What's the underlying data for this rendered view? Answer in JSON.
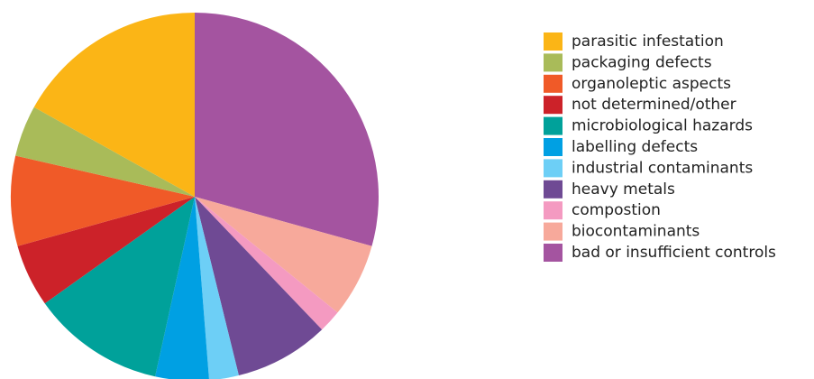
{
  "chart_data": {
    "type": "pie",
    "categories": [
      "parasitic infestation",
      "packaging defects",
      "organoleptic aspects",
      "not determined/other",
      "microbiological hazards",
      "labelling defects",
      "industrial contaminants",
      "heavy metals",
      "compostion",
      "biocontaminants",
      "bad or insufficient controls"
    ],
    "values": [
      16.9,
      4.5,
      7.9,
      5.5,
      11.7,
      4.7,
      2.6,
      8.3,
      2,
      6.5,
      29.3
    ],
    "colors": [
      "#fbb516",
      "#a9bb59",
      "#f05a28",
      "#cc2229",
      "#00a19a",
      "#00a0e3",
      "#6dcff6",
      "#6f4a94",
      "#f49ac1",
      "#f7a99b",
      "#a454a0"
    ]
  }
}
